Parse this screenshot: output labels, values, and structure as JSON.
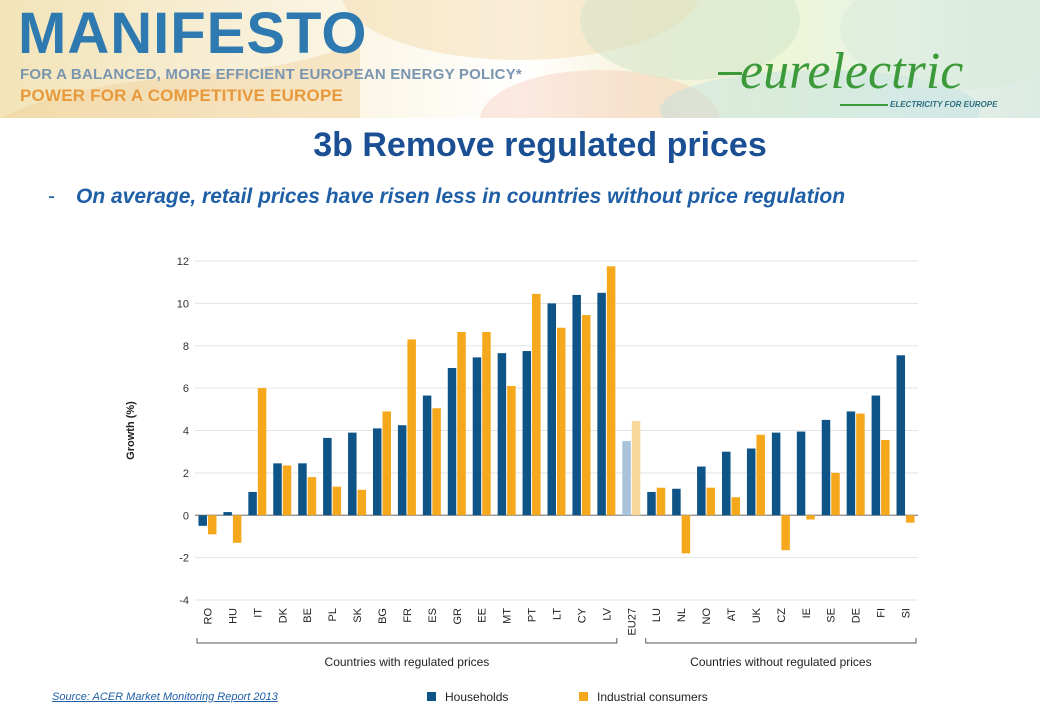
{
  "banner": {
    "brand": "MANIFESTO",
    "tagline1": "FOR A BALANCED, MORE EFFICIENT EUROPEAN ENERGY POLICY*",
    "tagline2": "POWER FOR A COMPETITIVE EUROPE",
    "logo": "eurelectric",
    "logo_tagline": "ELECTRICITY FOR EUROPE"
  },
  "slide": {
    "title": "3b Remove regulated prices",
    "bullet_dash": "-",
    "bullet": "On average, retail prices have risen less in countries without price regulation",
    "source": "Source: ACER Market Monitoring Report  2013"
  },
  "colors": {
    "households": "#0f5486",
    "industrial": "#f6a81c",
    "eu_households": "#a9c4da",
    "eu_industrial": "#f7d79a",
    "title": "#1a4f93"
  },
  "chart_data": {
    "type": "bar",
    "ylabel": "Growth (%)",
    "ylim": [
      -4,
      12
    ],
    "yticks": [
      -4,
      -2,
      0,
      2,
      4,
      6,
      8,
      10,
      12
    ],
    "grid": true,
    "legend_position": "bottom",
    "categories": [
      "RO",
      "HU",
      "IT",
      "DK",
      "BE",
      "PL",
      "SK",
      "BG",
      "FR",
      "ES",
      "GR",
      "EE",
      "MT",
      "PT",
      "LT",
      "CY",
      "LV",
      "EU27",
      "LU",
      "NL",
      "NO",
      "AT",
      "UK",
      "CZ",
      "IE",
      "SE",
      "DE",
      "FI",
      "SI"
    ],
    "series": [
      {
        "name": "Households",
        "values": [
          -0.5,
          0.15,
          1.1,
          2.45,
          2.45,
          3.65,
          3.9,
          4.1,
          4.25,
          5.65,
          6.95,
          7.45,
          7.65,
          7.75,
          10.0,
          10.4,
          10.5,
          3.5,
          1.1,
          1.25,
          2.3,
          3.0,
          3.15,
          3.9,
          3.95,
          4.5,
          4.9,
          5.65,
          7.55
        ]
      },
      {
        "name": "Industrial consumers",
        "values": [
          -0.9,
          -1.3,
          6.0,
          2.35,
          1.8,
          1.35,
          1.2,
          4.9,
          8.3,
          5.05,
          8.65,
          8.65,
          6.1,
          10.45,
          8.85,
          9.45,
          11.75,
          4.45,
          1.3,
          -1.8,
          1.3,
          0.85,
          3.8,
          -1.65,
          -0.2,
          2.0,
          4.8,
          3.55,
          -0.35
        ]
      }
    ],
    "highlight_category": "EU27",
    "groups": [
      {
        "label": "Countries with regulated prices",
        "from": "RO",
        "to": "LV"
      },
      {
        "label": "Countries without regulated prices",
        "from": "LU",
        "to": "SI"
      }
    ]
  }
}
